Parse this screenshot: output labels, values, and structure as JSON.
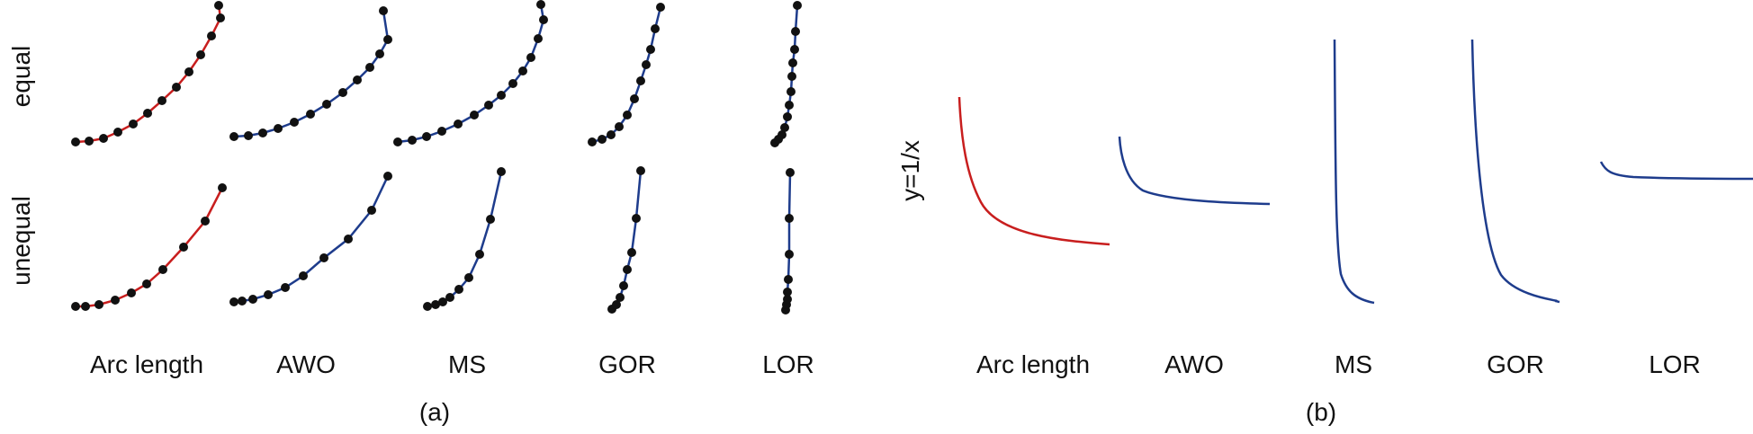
{
  "colors": {
    "red": "#c81e1e",
    "blue": "#1e3c8c",
    "dot": "#111111"
  },
  "panel_a": {
    "caption": "(a)",
    "row_labels": {
      "equal": "equal",
      "unequal": "unequal"
    },
    "method_labels": [
      "Arc length",
      "AWO",
      "MS",
      "GOR",
      "LOR"
    ]
  },
  "panel_b": {
    "caption": "(b)",
    "y_label": "y=1/x",
    "method_labels": [
      "Arc length",
      "AWO",
      "MS",
      "GOR",
      "LOR"
    ]
  }
}
